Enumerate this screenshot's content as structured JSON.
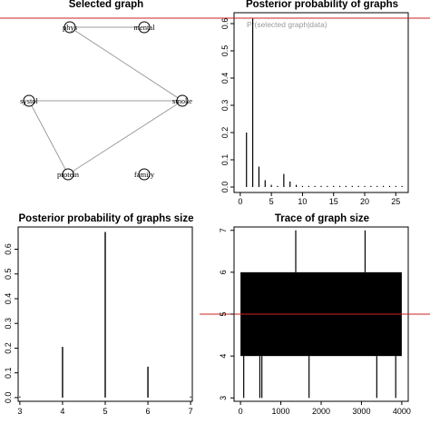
{
  "chart_data": [
    {
      "type": "network",
      "title": "Selected graph",
      "nodes": [
        "phys",
        "mental",
        "systol",
        "smoke",
        "protein",
        "family"
      ],
      "edges": [
        [
          "phys",
          "mental"
        ],
        [
          "phys",
          "smoke"
        ],
        [
          "systol",
          "smoke"
        ],
        [
          "smoke",
          "protein"
        ],
        [
          "systol",
          "protein"
        ]
      ],
      "edge_color": "#9c9c9c"
    },
    {
      "type": "bar",
      "title": "Posterior probability of graphs",
      "x": [
        1,
        2,
        3,
        4,
        5,
        6,
        7,
        8,
        9,
        10,
        11,
        12,
        13,
        14,
        15,
        16,
        17,
        18,
        19,
        20,
        21,
        22,
        23,
        24,
        25,
        26
      ],
      "values": [
        0.2,
        0.62,
        0.075,
        0.025,
        0.008,
        0.003,
        0.048,
        0.02,
        0.008,
        0.004,
        0.003,
        0.002,
        0.002,
        0.002,
        0.002,
        0.001,
        0.001,
        0.001,
        0.001,
        0.001,
        0.001,
        0.001,
        0.001,
        0.001,
        0.001,
        0.001
      ],
      "xticks": [
        "0",
        "5",
        "10",
        "15",
        "20",
        "25"
      ],
      "yticks": [
        "0.0",
        "0.1",
        "0.2",
        "0.3",
        "0.4",
        "0.5",
        "0.6"
      ],
      "xlim": [
        -1,
        27
      ],
      "ylim": [
        -0.02,
        0.64
      ],
      "hline": {
        "value": 0.62,
        "color": "#cc2222"
      },
      "annotation": "Pr(selected graph|data)"
    },
    {
      "type": "bar",
      "title": "Posterior probability of graphs size",
      "x": [
        3,
        4,
        5,
        6,
        7
      ],
      "values": [
        0.001,
        0.205,
        0.67,
        0.125,
        0.001
      ],
      "xticks": [
        "3",
        "4",
        "5",
        "6",
        "7"
      ],
      "yticks": [
        "0.0",
        "0.1",
        "0.2",
        "0.3",
        "0.4",
        "0.5",
        "0.6"
      ],
      "xlim": [
        2.96,
        7.04
      ],
      "ylim": [
        -0.015,
        0.69
      ]
    },
    {
      "type": "line",
      "title": "Trace of graph size",
      "band": {
        "x_from": 0,
        "x_to": 4000,
        "y_low": 4,
        "y_high": 6
      },
      "spikes_up": [
        {
          "x": 1370,
          "y": 7
        },
        {
          "x": 3090,
          "y": 7
        }
      ],
      "spikes_down": [
        {
          "x": 80,
          "y": 3
        },
        {
          "x": 480,
          "y": 3
        },
        {
          "x": 530,
          "y": 3
        },
        {
          "x": 1700,
          "y": 3
        },
        {
          "x": 3380,
          "y": 3
        },
        {
          "x": 3850,
          "y": 3
        }
      ],
      "xticks": [
        "0",
        "1000",
        "2000",
        "3000",
        "4000"
      ],
      "yticks": [
        "3",
        "4",
        "5",
        "6",
        "7"
      ],
      "xlim": [
        -160,
        4160
      ],
      "ylim": [
        2.92,
        7.08
      ],
      "hline": {
        "value": 5,
        "color": "#cc2222"
      }
    }
  ]
}
